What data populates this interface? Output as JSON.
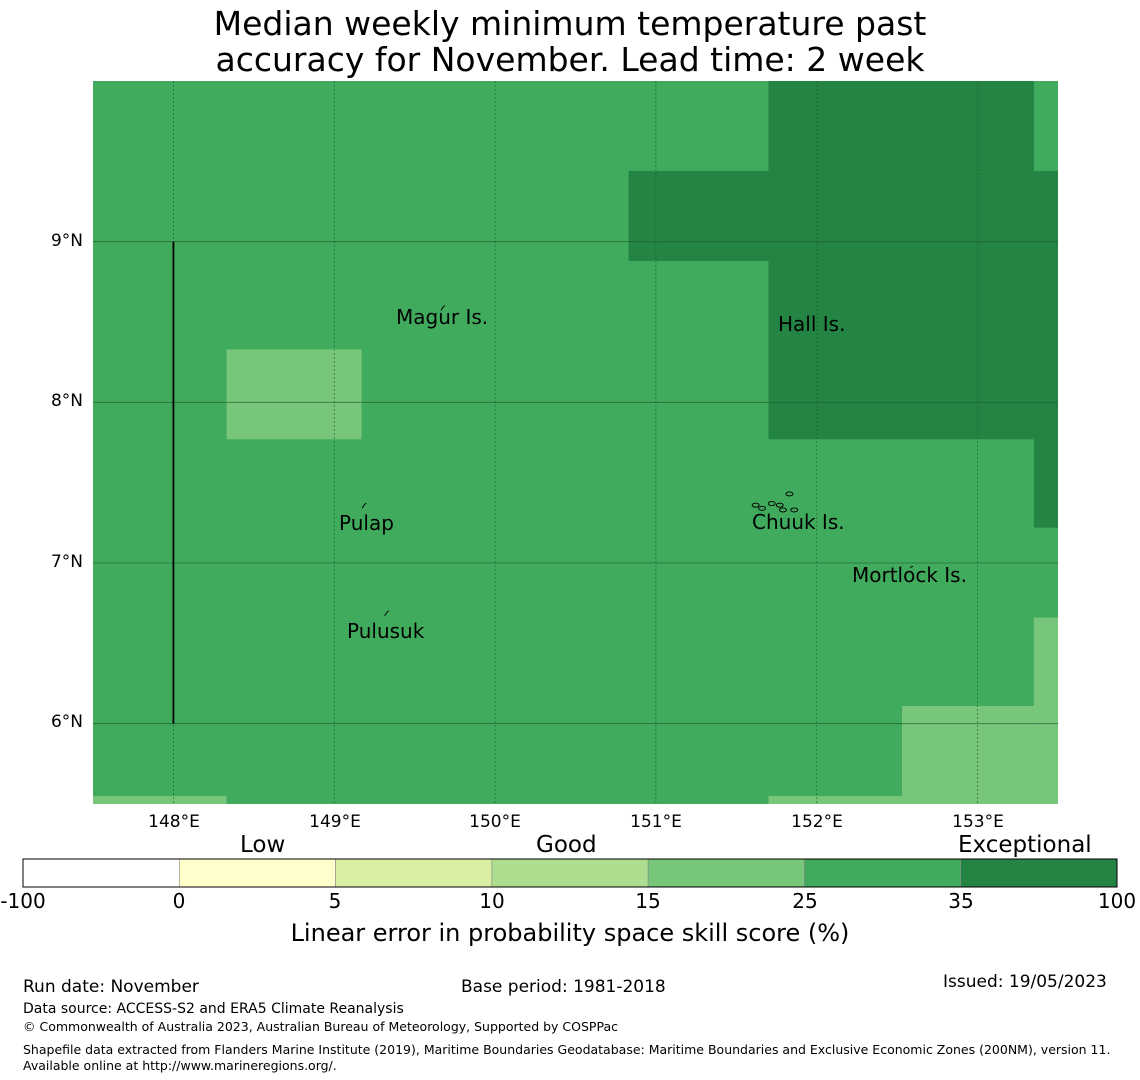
{
  "title": {
    "line1": "Median weekly minimum temperature past",
    "line2": "accuracy for November. Lead time: 2 week"
  },
  "map": {
    "lon_range": [
      147.5,
      153.5
    ],
    "lat_range": [
      5.5,
      10.0
    ],
    "lat_ticks": [
      {
        "value": 9,
        "label": "9°N"
      },
      {
        "value": 8,
        "label": "8°N"
      },
      {
        "value": 7,
        "label": "7°N"
      },
      {
        "value": 6,
        "label": "6°N"
      }
    ],
    "lon_ticks": [
      {
        "value": 148,
        "label": "148°E"
      },
      {
        "value": 149,
        "label": "149°E"
      },
      {
        "value": 150,
        "label": "150°E"
      },
      {
        "value": 151,
        "label": "151°E"
      },
      {
        "value": 152,
        "label": "152°E"
      },
      {
        "value": 153,
        "label": "153°E"
      }
    ],
    "background_class": "25-35",
    "skill_cells": [
      {
        "class": "35-100",
        "lon": [
          151.7,
          153.35
        ],
        "lat": [
          7.77,
          10.0
        ]
      },
      {
        "class": "35-100",
        "lon": [
          150.83,
          153.5
        ],
        "lat": [
          8.88,
          9.44
        ]
      },
      {
        "class": "35-100",
        "lon": [
          153.35,
          153.5
        ],
        "lat": [
          7.22,
          9.44
        ]
      },
      {
        "class": "15-25",
        "lon": [
          148.33,
          149.17
        ],
        "lat": [
          7.77,
          8.33
        ]
      },
      {
        "class": "15-25",
        "lon": [
          152.53,
          153.5
        ],
        "lat": [
          5.5,
          6.11
        ]
      },
      {
        "class": "15-25",
        "lon": [
          153.35,
          153.5
        ],
        "lat": [
          5.55,
          6.66
        ]
      },
      {
        "class": "15-25",
        "lon": [
          147.5,
          148.33
        ],
        "lat": [
          5.5,
          5.55
        ]
      },
      {
        "class": "15-25",
        "lon": [
          151.7,
          152.53
        ],
        "lat": [
          5.5,
          5.55
        ]
      }
    ],
    "place_labels": [
      {
        "name": "Magur Is.",
        "lon": 149.68,
        "lat": 8.53
      },
      {
        "name": "Hall Is.",
        "lon": 151.97,
        "lat": 8.49
      },
      {
        "name": "Pulap",
        "lon": 149.21,
        "lat": 7.25
      },
      {
        "name": "Chuuk Is.",
        "lon": 151.9,
        "lat": 7.26
      },
      {
        "name": "Mortlock Is.",
        "lon": 152.59,
        "lat": 6.93
      },
      {
        "name": "Pulusuk",
        "lon": 149.33,
        "lat": 6.58
      }
    ],
    "boundary_line": {
      "lon": 148.0,
      "lat": [
        6.0,
        9.0
      ]
    }
  },
  "legend": {
    "categories": [
      {
        "label": "Low"
      },
      {
        "label": "Good"
      },
      {
        "label": "Exceptional"
      }
    ],
    "bins": [
      {
        "range": "-100 to 0",
        "color": "#ffffff"
      },
      {
        "range": "0 to 5",
        "color": "#ffffcc"
      },
      {
        "range": "5 to 10",
        "color": "#d9f0a3"
      },
      {
        "range": "10 to 15",
        "color": "#addd8e"
      },
      {
        "range": "15 to 25",
        "color": "#78c679"
      },
      {
        "range": "25 to 35",
        "color": "#41ab5d"
      },
      {
        "range": "35 to 100",
        "color": "#238443"
      }
    ],
    "ticks": [
      "-100",
      "0",
      "5",
      "10",
      "15",
      "25",
      "35",
      "100"
    ],
    "title": "Linear error in probability space skill score (%)"
  },
  "footer": {
    "run_date": "Run date: November",
    "base_period": "Base period: 1981-2018",
    "issued": "Issued: 19/05/2023",
    "data_source": "Data source: ACCESS-S2 and ERA5 Climate Reanalysis",
    "copyright": "© Commonwealth of Australia 2023, Australian Bureau of Meteorology, Supported by COSPPac",
    "shapefile": "Shapefile data extracted from Flanders Marine Institute (2019), Maritime Boundaries Geodatabase: Maritime Boundaries and Exclusive Economic Zones (200NM), version 11. Available online at http://www.marineregions.org/."
  },
  "colors": {
    "15-25": "#78c679",
    "25-35": "#41ab5d",
    "35-100": "#238443"
  }
}
